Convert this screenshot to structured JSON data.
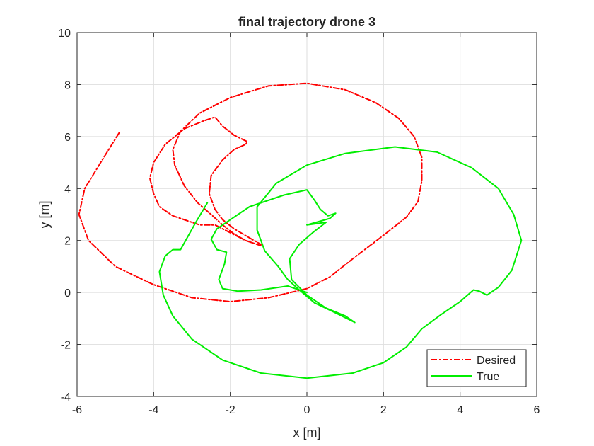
{
  "chart_data": {
    "type": "line",
    "title": "final trajectory drone 3",
    "xlabel": "x [m]",
    "ylabel": "y [m]",
    "xlim": [
      -6,
      6
    ],
    "ylim": [
      -4,
      10
    ],
    "xticks": [
      -6,
      -4,
      -2,
      0,
      2,
      4,
      6
    ],
    "yticks": [
      -4,
      -2,
      0,
      2,
      4,
      6,
      8,
      10
    ],
    "grid": true,
    "legend_position": "bottom-right",
    "series": [
      {
        "name": "Desired",
        "color": "#ff0000",
        "style": "dash-dot",
        "points": [
          [
            -4.9,
            6.15
          ],
          [
            -5.3,
            5.2
          ],
          [
            -5.8,
            4.0
          ],
          [
            -5.95,
            3.0
          ],
          [
            -5.7,
            2.0
          ],
          [
            -5.0,
            1.0
          ],
          [
            -4.0,
            0.3
          ],
          [
            -3.0,
            -0.2
          ],
          [
            -2.0,
            -0.35
          ],
          [
            -1.0,
            -0.2
          ],
          [
            0.0,
            0.15
          ],
          [
            0.6,
            0.6
          ],
          [
            1.2,
            1.3
          ],
          [
            2.0,
            2.2
          ],
          [
            2.6,
            2.9
          ],
          [
            2.9,
            3.5
          ],
          [
            3.0,
            4.3
          ],
          [
            3.0,
            5.2
          ],
          [
            2.8,
            6.0
          ],
          [
            2.4,
            6.7
          ],
          [
            1.8,
            7.3
          ],
          [
            1.0,
            7.8
          ],
          [
            0.0,
            8.05
          ],
          [
            -1.0,
            7.95
          ],
          [
            -2.0,
            7.5
          ],
          [
            -2.8,
            6.9
          ],
          [
            -3.3,
            6.2
          ],
          [
            -3.5,
            5.5
          ],
          [
            -3.45,
            4.9
          ],
          [
            -3.2,
            4.1
          ],
          [
            -2.85,
            3.45
          ],
          [
            -2.5,
            3.0
          ],
          [
            -2.2,
            2.6
          ],
          [
            -1.9,
            2.25
          ],
          [
            -1.6,
            2.0
          ],
          [
            -1.2,
            1.8
          ],
          [
            -1.6,
            2.0
          ],
          [
            -2.0,
            2.3
          ],
          [
            -2.4,
            2.6
          ],
          [
            -2.8,
            2.6
          ],
          [
            -3.1,
            2.75
          ],
          [
            -3.5,
            2.95
          ],
          [
            -3.85,
            3.3
          ],
          [
            -4.0,
            3.8
          ],
          [
            -4.1,
            4.4
          ],
          [
            -4.0,
            5.0
          ],
          [
            -3.7,
            5.7
          ],
          [
            -3.2,
            6.3
          ],
          [
            -2.7,
            6.6
          ],
          [
            -2.4,
            6.75
          ],
          [
            -2.2,
            6.4
          ],
          [
            -1.9,
            6.05
          ],
          [
            -1.55,
            5.8
          ],
          [
            -1.6,
            5.7
          ],
          [
            -1.9,
            5.5
          ],
          [
            -2.2,
            5.1
          ],
          [
            -2.5,
            4.5
          ],
          [
            -2.55,
            3.8
          ],
          [
            -2.4,
            3.2
          ],
          [
            -2.2,
            2.8
          ],
          [
            -1.9,
            2.45
          ],
          [
            -1.5,
            2.1
          ],
          [
            -1.2,
            1.85
          ]
        ]
      },
      {
        "name": "True",
        "color": "#00ee00",
        "style": "solid",
        "points": [
          [
            -2.6,
            3.45
          ],
          [
            -2.9,
            2.7
          ],
          [
            -3.3,
            1.65
          ],
          [
            -3.5,
            1.65
          ],
          [
            -3.7,
            1.4
          ],
          [
            -3.85,
            0.8
          ],
          [
            -3.75,
            -0.1
          ],
          [
            -3.5,
            -0.9
          ],
          [
            -3.0,
            -1.8
          ],
          [
            -2.2,
            -2.6
          ],
          [
            -1.2,
            -3.1
          ],
          [
            0.0,
            -3.3
          ],
          [
            1.2,
            -3.1
          ],
          [
            2.0,
            -2.7
          ],
          [
            2.6,
            -2.1
          ],
          [
            3.0,
            -1.4
          ],
          [
            3.5,
            -0.85
          ],
          [
            4.0,
            -0.35
          ],
          [
            4.35,
            0.1
          ],
          [
            4.5,
            0.05
          ],
          [
            4.7,
            -0.1
          ],
          [
            5.0,
            0.2
          ],
          [
            5.35,
            0.85
          ],
          [
            5.6,
            2.0
          ],
          [
            5.4,
            3.0
          ],
          [
            5.0,
            4.0
          ],
          [
            4.3,
            4.8
          ],
          [
            3.4,
            5.4
          ],
          [
            2.3,
            5.6
          ],
          [
            1.0,
            5.35
          ],
          [
            0.0,
            4.9
          ],
          [
            -0.8,
            4.2
          ],
          [
            -1.3,
            3.3
          ],
          [
            -1.3,
            2.4
          ],
          [
            -1.1,
            1.6
          ],
          [
            -0.75,
            1.0
          ],
          [
            -0.5,
            0.5
          ],
          [
            -0.2,
            0.1
          ],
          [
            0.2,
            -0.4
          ],
          [
            0.7,
            -0.75
          ],
          [
            1.25,
            -1.15
          ],
          [
            1.0,
            -0.9
          ],
          [
            0.5,
            -0.6
          ],
          [
            0.0,
            -0.1
          ],
          [
            -0.4,
            0.5
          ],
          [
            -0.45,
            1.3
          ],
          [
            -0.2,
            1.85
          ],
          [
            0.15,
            2.3
          ],
          [
            0.5,
            2.7
          ],
          [
            0.0,
            2.6
          ],
          [
            0.6,
            2.85
          ],
          [
            0.75,
            3.05
          ],
          [
            0.55,
            2.95
          ],
          [
            0.35,
            3.2
          ],
          [
            0.2,
            3.55
          ],
          [
            0.0,
            3.95
          ],
          [
            -0.6,
            3.75
          ],
          [
            -1.5,
            3.3
          ],
          [
            -2.0,
            2.8
          ],
          [
            -2.35,
            2.45
          ],
          [
            -2.5,
            2.05
          ],
          [
            -2.35,
            1.65
          ],
          [
            -2.1,
            1.55
          ],
          [
            -2.15,
            1.1
          ],
          [
            -2.3,
            0.5
          ],
          [
            -2.2,
            0.15
          ],
          [
            -1.8,
            0.05
          ],
          [
            -1.2,
            0.1
          ],
          [
            -0.5,
            0.25
          ],
          [
            0.0,
            0.0
          ]
        ]
      }
    ]
  }
}
